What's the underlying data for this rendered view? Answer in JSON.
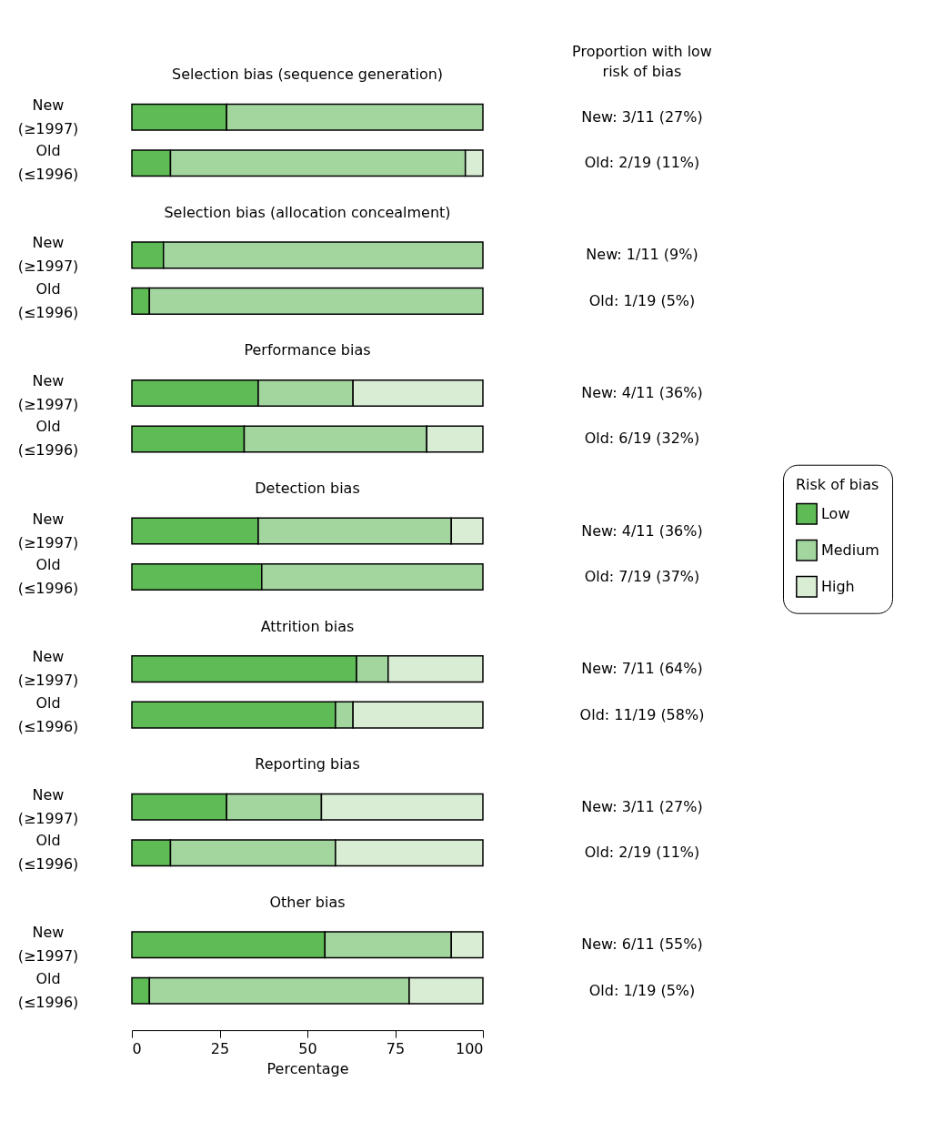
{
  "chart_data": {
    "type": "bar",
    "orientation": "horizontal",
    "stacked": true,
    "categories": [
      "New (≥1997)",
      "Old (≤1996)",
      "New (≥1997)",
      "Old (≤1996)",
      "New (≥1997)",
      "Old (≤1996)",
      "New (≥1997)",
      "Old (≤1996)",
      "New (≥1997)",
      "Old (≤1996)",
      "New (≥1997)",
      "Old (≤1996)",
      "New (≥1997)",
      "Old (≤1996)"
    ],
    "xlim": [
      0,
      100
    ],
    "xticks": [
      0,
      25,
      50,
      75,
      100
    ],
    "xlabel": "Percentage",
    "grid": false,
    "legend": "right",
    "legend_title": "Risk of bias",
    "series": [
      {
        "name": "Low",
        "color": "#5fbb56",
        "values": [
          27,
          11,
          9,
          5,
          36,
          32,
          36,
          37,
          64,
          58,
          27,
          11,
          55,
          5
        ],
        "value_labels": [
          "New: 3/11 (27%)",
          "Old: 2/19 (11%)",
          "New: 1/11 (9%)",
          "Old: 1/19 (5%)",
          "New: 4/11 (36%)",
          "Old: 6/19 (32%)",
          "New: 4/11 (36%)",
          "Old: 7/19 (37%)",
          "New: 7/11 (64%)",
          "Old: 11/19 (58%)",
          "New: 3/11 (27%)",
          "Old: 2/19 (11%)",
          "New: 6/11 (55%)",
          "Old: 1/19 (5%)"
        ]
      },
      {
        "name": "Medium",
        "color": "#a3d59f",
        "values": [
          73,
          84,
          91,
          95,
          27,
          52,
          55,
          63,
          9,
          5,
          27,
          47,
          36,
          74
        ]
      },
      {
        "name": "High",
        "color": "#d9ecd4",
        "values": [
          0,
          5,
          0,
          0,
          37,
          16,
          9,
          0,
          27,
          37,
          46,
          42,
          9,
          21
        ]
      }
    ],
    "annotations": [
      "Proportion with low risk of bias",
      "Selection bias (sequence generation)",
      "Selection bias (allocation concealment)",
      "Performance bias",
      "Detection bias",
      "Attrition bias",
      "Reporting bias",
      "Other bias"
    ]
  }
}
